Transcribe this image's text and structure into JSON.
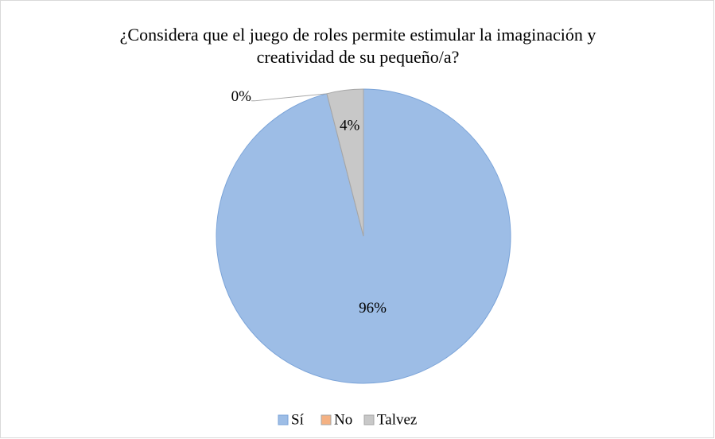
{
  "chart_data": {
    "type": "pie",
    "title": "¿Considera que el juego de roles permite estimular la imaginación y creatividad de su pequeño/a?",
    "categories": [
      "Sí",
      "No",
      "Talvez"
    ],
    "values": [
      96,
      0,
      4
    ],
    "value_labels": [
      "96%",
      "0%",
      "4%"
    ],
    "colors": [
      "#9dbde6",
      "#f4b183",
      "#c8c8c8"
    ],
    "legend": "bottom"
  }
}
